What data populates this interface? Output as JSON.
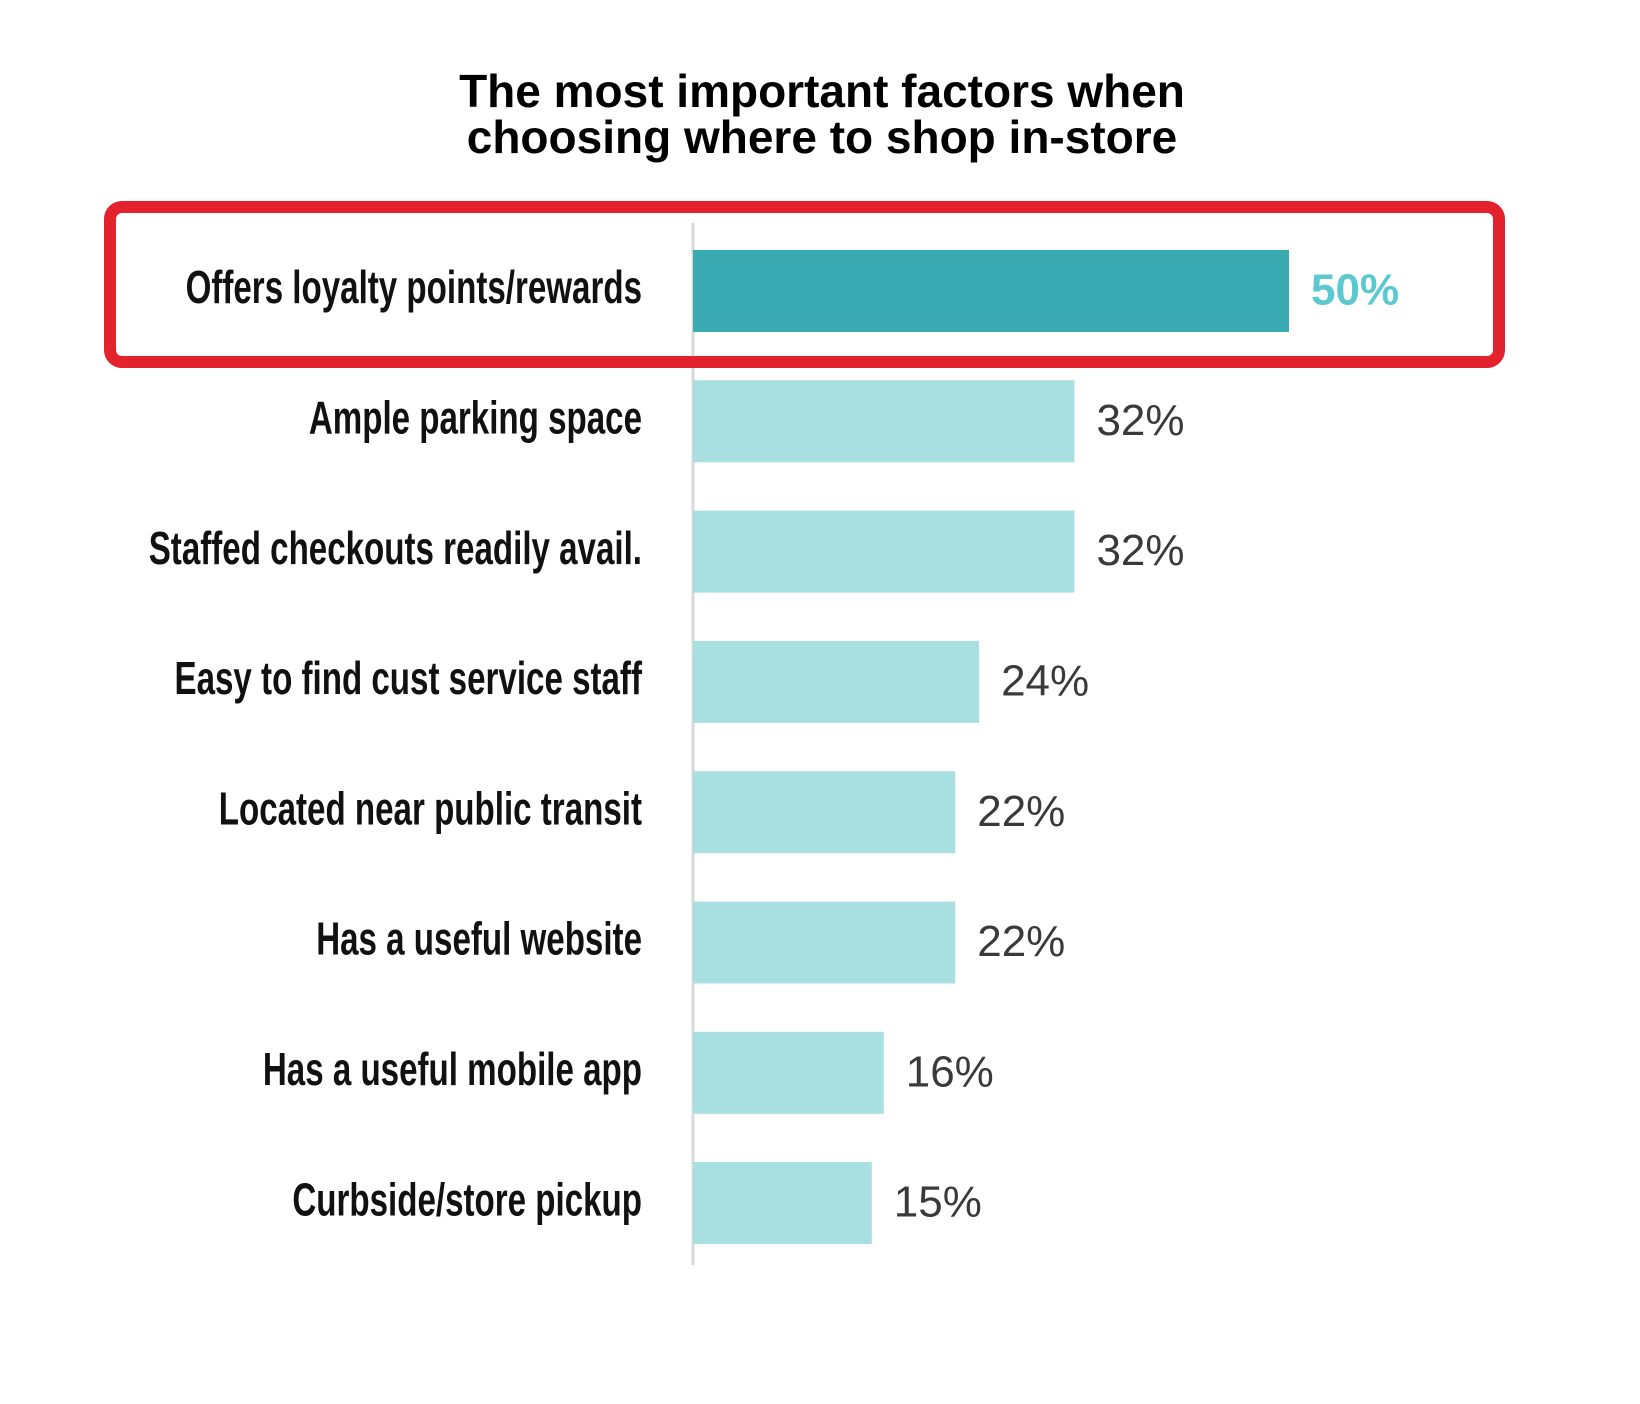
{
  "chart_data": {
    "type": "bar",
    "orientation": "horizontal",
    "title": [
      "The most important factors when",
      "choosing where to shop in-store"
    ],
    "categories": [
      "Offers loyalty points/rewards",
      "Ample parking space",
      "Staffed checkouts readily avail.",
      "Easy to find cust service staff",
      "Located near public transit",
      "Has a useful website",
      "Has a useful mobile app",
      "Curbside/store pickup"
    ],
    "values": [
      50,
      32,
      32,
      24,
      22,
      22,
      16,
      15
    ],
    "value_labels": [
      "50%",
      "32%",
      "32%",
      "24%",
      "22%",
      "22%",
      "16%",
      "15%"
    ],
    "colors": [
      "#3aabb3",
      "#a8e0e2",
      "#a8e0e2",
      "#a8e0e2",
      "#a8e0e2",
      "#a8e0e2",
      "#a8e0e2",
      "#a8e0e2"
    ],
    "value_label_colors": [
      "#5cc9d0",
      "#3a3a3a",
      "#3a3a3a",
      "#3a3a3a",
      "#3a3a3a",
      "#3a3a3a",
      "#3a3a3a",
      "#3a3a3a"
    ]
  }
}
